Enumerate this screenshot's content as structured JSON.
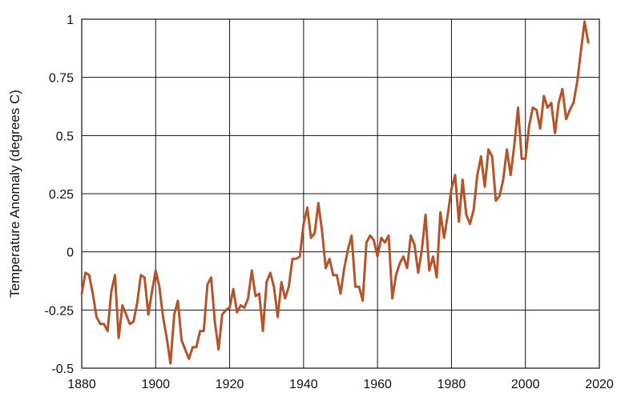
{
  "chart_data": {
    "type": "line",
    "title": "",
    "xlabel": "",
    "ylabel": "Temperature Anomaly (degrees C)",
    "xlim": [
      1880,
      2020
    ],
    "ylim": [
      -0.5,
      1
    ],
    "grid": true,
    "x_ticks": [
      "1880",
      "1900",
      "1920",
      "1940",
      "1960",
      "1980",
      "2000",
      "2020"
    ],
    "y_ticks": [
      "1",
      "0.75",
      "0.5",
      "0.25",
      "0",
      "-0.25",
      "-0.5"
    ],
    "colors": {
      "line": "#b5532a",
      "grid": "#111111"
    },
    "series": [
      {
        "color": "#b5532a",
        "x": [
          1880,
          1881,
          1882,
          1883,
          1884,
          1885,
          1886,
          1887,
          1888,
          1889,
          1890,
          1891,
          1892,
          1893,
          1894,
          1895,
          1896,
          1897,
          1898,
          1899,
          1900,
          1901,
          1902,
          1903,
          1904,
          1905,
          1906,
          1907,
          1908,
          1909,
          1910,
          1911,
          1912,
          1913,
          1914,
          1915,
          1916,
          1917,
          1918,
          1919,
          1920,
          1921,
          1922,
          1923,
          1924,
          1925,
          1926,
          1927,
          1928,
          1929,
          1930,
          1931,
          1932,
          1933,
          1934,
          1935,
          1936,
          1937,
          1938,
          1939,
          1940,
          1941,
          1942,
          1943,
          1944,
          1945,
          1946,
          1947,
          1948,
          1949,
          1950,
          1951,
          1952,
          1953,
          1954,
          1955,
          1956,
          1957,
          1958,
          1959,
          1960,
          1961,
          1962,
          1963,
          1964,
          1965,
          1966,
          1967,
          1968,
          1969,
          1970,
          1971,
          1972,
          1973,
          1974,
          1975,
          1976,
          1977,
          1978,
          1979,
          1980,
          1981,
          1982,
          1983,
          1984,
          1985,
          1986,
          1987,
          1988,
          1989,
          1990,
          1991,
          1992,
          1993,
          1994,
          1995,
          1996,
          1997,
          1998,
          1999,
          2000,
          2001,
          2002,
          2003,
          2004,
          2005,
          2006,
          2007,
          2008,
          2009,
          2010,
          2011,
          2012,
          2013,
          2014,
          2015,
          2016,
          2017
        ],
        "values": [
          -0.18,
          -0.09,
          -0.1,
          -0.18,
          -0.28,
          -0.31,
          -0.31,
          -0.34,
          -0.17,
          -0.1,
          -0.37,
          -0.23,
          -0.27,
          -0.31,
          -0.3,
          -0.22,
          -0.1,
          -0.11,
          -0.27,
          -0.17,
          -0.08,
          -0.15,
          -0.28,
          -0.37,
          -0.48,
          -0.27,
          -0.21,
          -0.38,
          -0.42,
          -0.46,
          -0.41,
          -0.41,
          -0.34,
          -0.34,
          -0.14,
          -0.11,
          -0.3,
          -0.42,
          -0.27,
          -0.25,
          -0.24,
          -0.16,
          -0.26,
          -0.23,
          -0.24,
          -0.2,
          -0.08,
          -0.19,
          -0.18,
          -0.34,
          -0.13,
          -0.09,
          -0.15,
          -0.28,
          -0.13,
          -0.2,
          -0.15,
          -0.03,
          -0.03,
          -0.02,
          0.12,
          0.19,
          0.06,
          0.08,
          0.21,
          0.09,
          -0.07,
          -0.03,
          -0.1,
          -0.1,
          -0.18,
          -0.07,
          0.01,
          0.07,
          -0.15,
          -0.15,
          -0.21,
          0.04,
          0.07,
          0.05,
          -0.02,
          0.06,
          0.04,
          0.07,
          -0.2,
          -0.1,
          -0.05,
          -0.02,
          -0.07,
          0.07,
          0.03,
          -0.09,
          0.01,
          0.16,
          -0.08,
          -0.02,
          -0.11,
          0.17,
          0.06,
          0.16,
          0.27,
          0.33,
          0.13,
          0.31,
          0.16,
          0.12,
          0.18,
          0.33,
          0.41,
          0.28,
          0.44,
          0.41,
          0.22,
          0.24,
          0.31,
          0.44,
          0.33,
          0.46,
          0.62,
          0.4,
          0.4,
          0.54,
          0.62,
          0.61,
          0.53,
          0.67,
          0.62,
          0.64,
          0.51,
          0.64,
          0.7,
          0.57,
          0.61,
          0.64,
          0.73,
          0.86,
          0.99,
          0.9
        ]
      }
    ]
  }
}
